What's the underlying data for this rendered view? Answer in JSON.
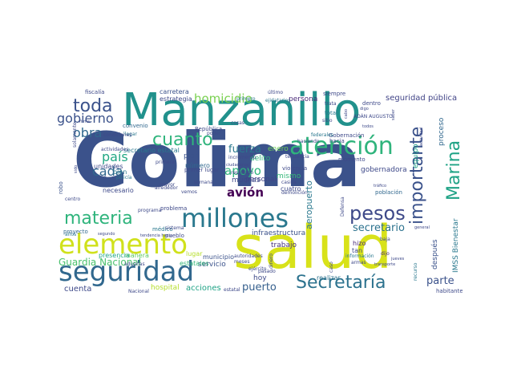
{
  "words": [
    {
      "text": "Colima",
      "color": "#3b528b"
    },
    {
      "text": "Manzanillo",
      "color": "#21918c"
    },
    {
      "text": "salud",
      "color": "#d8e219"
    },
    {
      "text": "seguridad",
      "color": "#31688e"
    },
    {
      "text": "elemento",
      "color": "#d0e11c"
    },
    {
      "text": "millones",
      "color": "#2a788e"
    },
    {
      "text": "atención",
      "color": "#2fb47c"
    },
    {
      "text": "Secretaría",
      "color": "#2c728e"
    },
    {
      "text": "pesos",
      "color": "#3e4989"
    },
    {
      "text": "materia",
      "color": "#2fb47c"
    },
    {
      "text": "importante",
      "color": "#3b528b"
    },
    {
      "text": "Marina",
      "color": "#20a386"
    },
    {
      "text": "toda",
      "color": "#3b528b"
    },
    {
      "text": "cuanto",
      "color": "#2fb47c"
    },
    {
      "text": "gobierno",
      "color": "#3b528b"
    },
    {
      "text": "homicidio",
      "color": "#7ad151"
    },
    {
      "text": "obra",
      "color": "#31688e"
    },
    {
      "text": "país",
      "color": "#22a884"
    },
    {
      "text": "cada",
      "color": "#31688e"
    },
    {
      "text": "fuerza",
      "color": "#2a788e"
    },
    {
      "text": "apoyo",
      "color": "#2fb47c"
    },
    {
      "text": "avión",
      "color": "#440154"
    },
    {
      "text": "Guardia Nacional",
      "color": "#4ac16d"
    },
    {
      "text": "secretario",
      "color": "#2c728e"
    },
    {
      "text": "puerto",
      "color": "#355f8d"
    },
    {
      "text": "parte",
      "color": "#3b528b"
    },
    {
      "text": "aeropuerto",
      "color": "#2a788e"
    },
    {
      "text": "seguridad pública",
      "color": "#414487"
    },
    {
      "text": "cuenta",
      "color": "#3e4989"
    },
    {
      "text": "acciones",
      "color": "#20a386"
    },
    {
      "text": "infraestructura",
      "color": "#3b528b"
    },
    {
      "text": "trabajo",
      "color": "#46327e"
    },
    {
      "text": "persona",
      "color": "#482878"
    },
    {
      "text": "hospital",
      "color": "#b5de2b"
    },
    {
      "text": "IMSS Bienestar",
      "color": "#2a788e"
    },
    {
      "text": "proceso",
      "color": "#31688e"
    },
    {
      "text": "después",
      "color": "#3b528b"
    },
    {
      "text": "equipo",
      "color": "#1fa187"
    },
    {
      "text": "gobernadora",
      "color": "#3e4989"
    },
    {
      "text": "personal",
      "color": "#414487"
    },
    {
      "text": "delito",
      "color": "#2fb47c"
    },
    {
      "text": "muchas",
      "color": "#3e4989"
    },
    {
      "text": "servicio",
      "color": "#3b528b"
    },
    {
      "text": "municipio",
      "color": "#3b528b"
    },
    {
      "text": "realizar",
      "color": "#2c728e"
    },
    {
      "text": "hoy",
      "color": "#3e4989"
    },
    {
      "text": "hizo",
      "color": "#482878"
    },
    {
      "text": "tan",
      "color": "#3e4989"
    },
    {
      "text": "mismo",
      "color": "#35b779"
    },
    {
      "text": "enero",
      "color": "#6ece58"
    },
    {
      "text": "plan",
      "color": "#3b528b"
    },
    {
      "text": "número",
      "color": "#31688e"
    },
    {
      "text": "bien",
      "color": "#2a788e"
    },
    {
      "text": "sólo",
      "color": "#3b528b"
    },
    {
      "text": "necesario",
      "color": "#3e4989"
    },
    {
      "text": "manera",
      "color": "#5ec962"
    },
    {
      "text": "presencia",
      "color": "#22a884"
    },
    {
      "text": "lugar",
      "color": "#b5de2b"
    },
    {
      "text": "estatales",
      "color": "#35b779"
    },
    {
      "text": "cuatro",
      "color": "#3e4989"
    },
    {
      "text": "carretera",
      "color": "#3b528b"
    },
    {
      "text": "estrategia",
      "color": "#3e4989"
    },
    {
      "text": "secretario estatal",
      "color": "#2a788e"
    },
    {
      "text": "unidades",
      "color": "#3e4989"
    },
    {
      "text": "robo",
      "color": "#3b528b"
    },
    {
      "text": "proyecto",
      "color": "#31688e"
    },
    {
      "text": "población",
      "color": "#31688e"
    },
    {
      "text": "fiscalía",
      "color": "#3e4989"
    },
    {
      "text": "convenio",
      "color": "#31688e"
    },
    {
      "text": "hacia",
      "color": "#3e4989"
    },
    {
      "text": "dentro",
      "color": "#3e4989"
    },
    {
      "text": "siempre",
      "color": "#3e4989"
    },
    {
      "text": "total",
      "color": "#2a788e"
    },
    {
      "text": "primero",
      "color": "#2a788e"
    },
    {
      "text": "Gobernación",
      "color": "#3e4989"
    },
    {
      "text": "momento",
      "color": "#3e4989"
    },
    {
      "text": "dijo",
      "color": "#482878"
    },
    {
      "text": "habitantes",
      "color": "#3e4989"
    },
    {
      "text": "pueblo",
      "color": "#3e4989"
    },
    {
      "text": "médico",
      "color": "#2a788e"
    },
    {
      "text": "años",
      "color": "#2a788e"
    },
    {
      "text": "Nacional",
      "color": "#3e4989"
    },
    {
      "text": "estatal",
      "color": "#3e4989"
    },
    {
      "text": "meses",
      "color": "#3e4989"
    },
    {
      "text": "ejército",
      "color": "#3e4989"
    },
    {
      "text": "vemos",
      "color": "#3e4989"
    },
    {
      "text": "primer lugar",
      "color": "#3e4989"
    },
    {
      "text": "policía",
      "color": "#2a788e"
    },
    {
      "text": "sistema",
      "color": "#3e4989"
    },
    {
      "text": "caso",
      "color": "#3e4989"
    },
    {
      "text": "ADÁN AUGUSTO",
      "color": "#3e4989"
    },
    {
      "text": "semana",
      "color": "#3e4989"
    },
    {
      "text": "mayor",
      "color": "#3e4989"
    },
    {
      "text": "aduanas",
      "color": "#3e4989"
    },
    {
      "text": "información",
      "color": "#2a788e"
    },
    {
      "text": "tendencia",
      "color": "#3e4989"
    },
    {
      "text": "casilla",
      "color": "#3e4989"
    },
    {
      "text": "demolición",
      "color": "#3e4989"
    },
    {
      "text": "incremento",
      "color": "#3e4989"
    },
    {
      "text": "resultado",
      "color": "#3e4989"
    },
    {
      "text": "llegar",
      "color": "#2a788e"
    },
    {
      "text": "condiciones",
      "color": "#3e4989"
    },
    {
      "text": "centro",
      "color": "#3e4989"
    },
    {
      "text": "programa",
      "color": "#3e4989"
    },
    {
      "text": "problema",
      "color": "#3e4989"
    },
    {
      "text": "ejidatarios",
      "color": "#2a788e"
    },
    {
      "text": "trata",
      "color": "#3e4989"
    },
    {
      "text": "pasado",
      "color": "#3e4989"
    },
    {
      "text": "autoridades",
      "color": "#3e4989"
    },
    {
      "text": "dinero",
      "color": "#3e4989"
    },
    {
      "text": "baja",
      "color": "#3e4989"
    },
    {
      "text": "armas",
      "color": "#3e4989"
    },
    {
      "text": "recurso",
      "color": "#2a788e"
    },
    {
      "text": "haciendo",
      "color": "#3e4989"
    },
    {
      "text": "Defensa",
      "color": "#3e4989"
    },
    {
      "text": "poder",
      "color": "#3e4989"
    },
    {
      "text": "alrededor",
      "color": "#3e4989"
    },
    {
      "text": "primera",
      "color": "#3e4989"
    },
    {
      "text": "República",
      "color": "#3e4989"
    },
    {
      "text": "federales",
      "color": "#2a788e"
    },
    {
      "text": "actividades",
      "color": "#3e4989"
    },
    {
      "text": "cosas",
      "color": "#3e4989"
    },
    {
      "text": "sitio",
      "color": "#3e4989"
    },
    {
      "text": "último",
      "color": "#3e4989"
    },
    {
      "text": "violencia",
      "color": "#3e4989"
    },
    {
      "text": "general",
      "color": "#3e4989"
    },
    {
      "text": "segundo",
      "color": "#3e4989"
    },
    {
      "text": "solamente",
      "color": "#3e4989"
    },
    {
      "text": "digo",
      "color": "#3e4989"
    },
    {
      "text": "sido",
      "color": "#3e4989"
    },
    {
      "text": "firma",
      "color": "#3e4989"
    },
    {
      "text": "ciudadanos",
      "color": "#3e4989"
    },
    {
      "text": "tráfico",
      "color": "#3e4989"
    },
    {
      "text": "transporte",
      "color": "#3e4989"
    },
    {
      "text": "actividad",
      "color": "#3e4989"
    },
    {
      "text": "jueves",
      "color": "#3e4989"
    },
    {
      "text": "tendencia hacia",
      "color": "#3e4989"
    },
    {
      "text": "cabo",
      "color": "#3e4989"
    },
    {
      "text": "todos",
      "color": "#3e4989"
    },
    {
      "text": "saber",
      "color": "#3e4989"
    },
    {
      "text": "municipal",
      "color": "#3e4989"
    }
  ]
}
